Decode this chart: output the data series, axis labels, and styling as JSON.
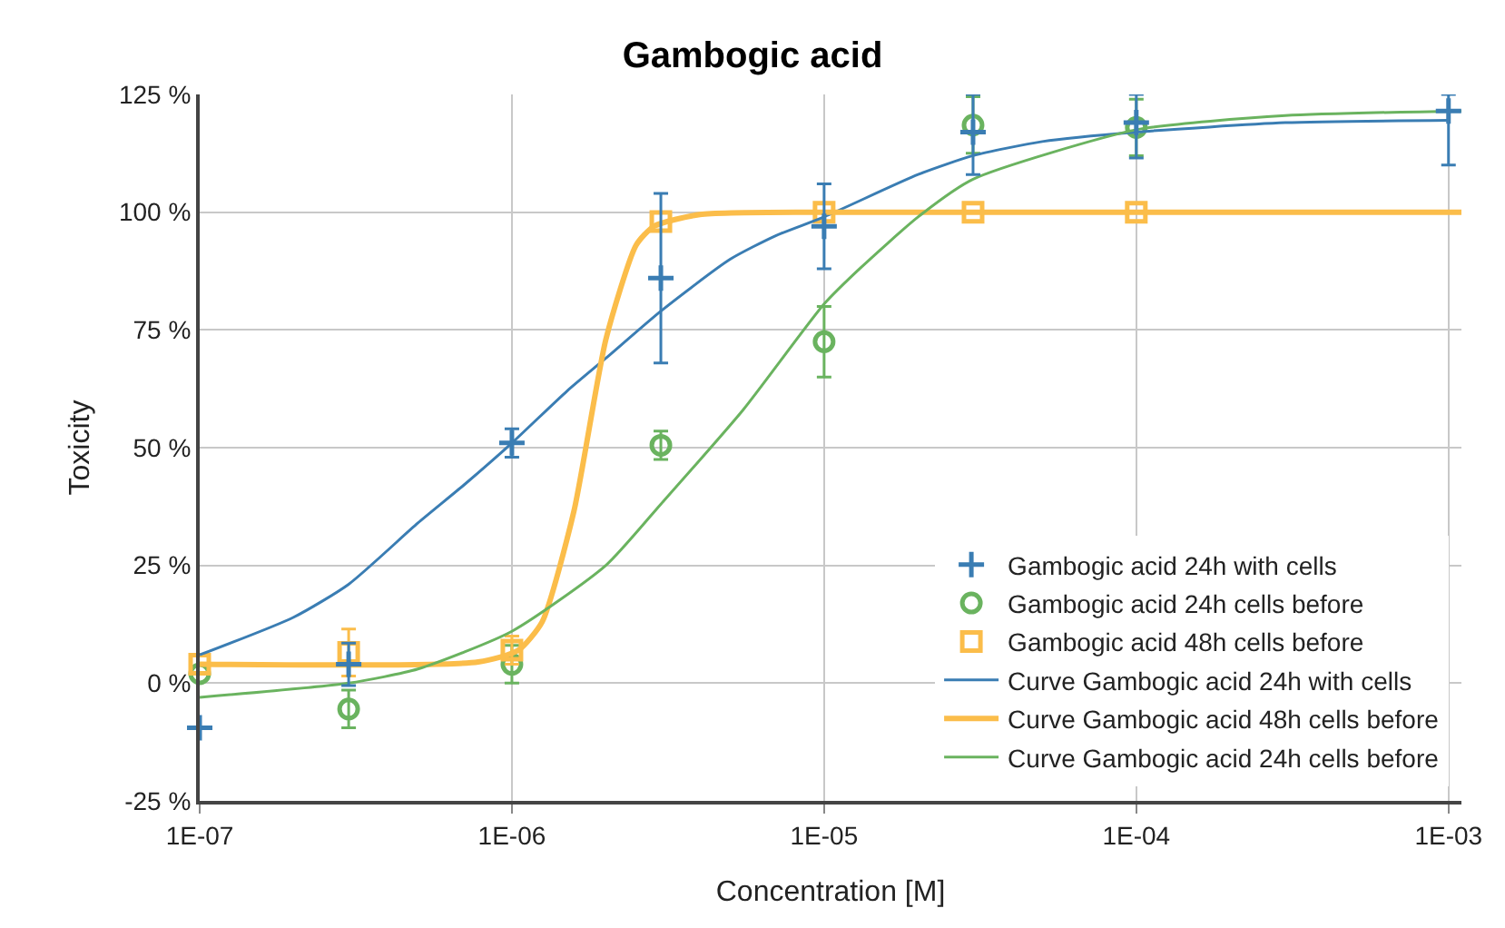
{
  "chart_data": {
    "type": "scatter",
    "title": "Gambogic acid",
    "xlabel": "Concentration [M]",
    "ylabel": "Toxicity",
    "log": "x",
    "grid": true,
    "legend": "bottom right",
    "xlim": [
      1e-07,
      0.0011
    ],
    "xticks": [
      {
        "value": 1e-07,
        "label": "1E-07"
      },
      {
        "value": 1e-06,
        "label": "1E-06"
      },
      {
        "value": 1e-05,
        "label": "1E-05"
      },
      {
        "value": 0.0001,
        "label": "1E-04"
      },
      {
        "value": 0.001,
        "label": "1E-03"
      }
    ],
    "ylim": [
      -25,
      125
    ],
    "yticks": [
      {
        "value": -25,
        "label": "-25 %"
      },
      {
        "value": 0,
        "label": "0 %"
      },
      {
        "value": 25,
        "label": "25 %"
      },
      {
        "value": 50,
        "label": "50 %"
      },
      {
        "value": 75,
        "label": "75 %"
      },
      {
        "value": 100,
        "label": "100 %"
      },
      {
        "value": 125,
        "label": "125 %"
      }
    ],
    "series": [
      {
        "name": "Gambogic acid 24h with cells",
        "marker": "cross",
        "color": "#3a7db3",
        "x": [
          1e-07,
          3e-07,
          1e-06,
          3e-06,
          1e-05,
          3e-05,
          0.0001,
          0.001
        ],
        "values": [
          -9.5,
          4,
          51,
          86,
          97,
          117,
          119,
          121.5
        ],
        "errors": [
          null,
          4.5,
          3,
          18,
          9,
          [
            108,
            125
          ],
          [
            111.5,
            125
          ],
          [
            110,
            125
          ]
        ]
      },
      {
        "name": "Gambogic acid 24h cells before",
        "marker": "circle",
        "color": "#6ab35f",
        "x": [
          1e-07,
          3e-07,
          1e-06,
          3e-06,
          1e-05,
          3e-05,
          0.0001
        ],
        "values": [
          2,
          -5.5,
          4,
          50.5,
          72.5,
          118.5,
          118
        ],
        "errors": [
          null,
          4,
          4,
          3,
          7.5,
          6,
          6
        ]
      },
      {
        "name": "Gambogic acid 48h cells before",
        "marker": "square",
        "color": "#fbbd4a",
        "x": [
          1e-07,
          3e-07,
          1e-06,
          3e-06,
          1e-05,
          3e-05,
          0.0001
        ],
        "values": [
          4,
          6.5,
          7,
          98,
          100,
          100,
          100
        ],
        "errors": [
          null,
          5,
          3,
          null,
          null,
          null,
          null
        ]
      },
      {
        "name": "Curve Gambogic acid 24h with cells",
        "type": "line",
        "marker": "none",
        "line_style": "solid",
        "color": "#3a7db3",
        "x": [
          1e-07,
          2e-07,
          3e-07,
          5e-07,
          7e-07,
          1e-06,
          1.5e-06,
          2e-06,
          3e-06,
          5e-06,
          7e-06,
          1e-05,
          2e-05,
          3e-05,
          5e-05,
          0.0001,
          0.0003,
          0.001
        ],
        "values": [
          6,
          14,
          21,
          34,
          42,
          51,
          62,
          69,
          79,
          90,
          95,
          99,
          108,
          112,
          115,
          117,
          119,
          119.5
        ]
      },
      {
        "name": "Curve Gambogic acid 48h cells before",
        "type": "line",
        "marker": "none",
        "line_style": "solid",
        "color": "#fbbd4a",
        "x": [
          1e-07,
          7.8e-07,
          1.05e-06,
          1.25e-06,
          1.58e-06,
          2e-06,
          2.5e-06,
          2.85e-06,
          4e-06,
          1e-05,
          0.0011
        ],
        "values": [
          4,
          4.5,
          7,
          13,
          36.5,
          73,
          93,
          97,
          99.5,
          100,
          100
        ]
      },
      {
        "name": "Curve Gambogic acid 24h cells before",
        "type": "line",
        "marker": "none",
        "line_style": "solid",
        "color": "#6ab35f",
        "x": [
          1e-07,
          3e-07,
          5e-07,
          1e-06,
          2e-06,
          3e-06,
          5.5e-06,
          1e-05,
          1.3e-05,
          2e-05,
          3e-05,
          0.0001,
          0.0003,
          0.0011
        ],
        "values": [
          -3,
          0,
          3,
          11,
          25,
          38,
          58,
          80.5,
          88,
          99,
          107,
          117.5,
          120.5,
          121.5
        ]
      }
    ]
  }
}
